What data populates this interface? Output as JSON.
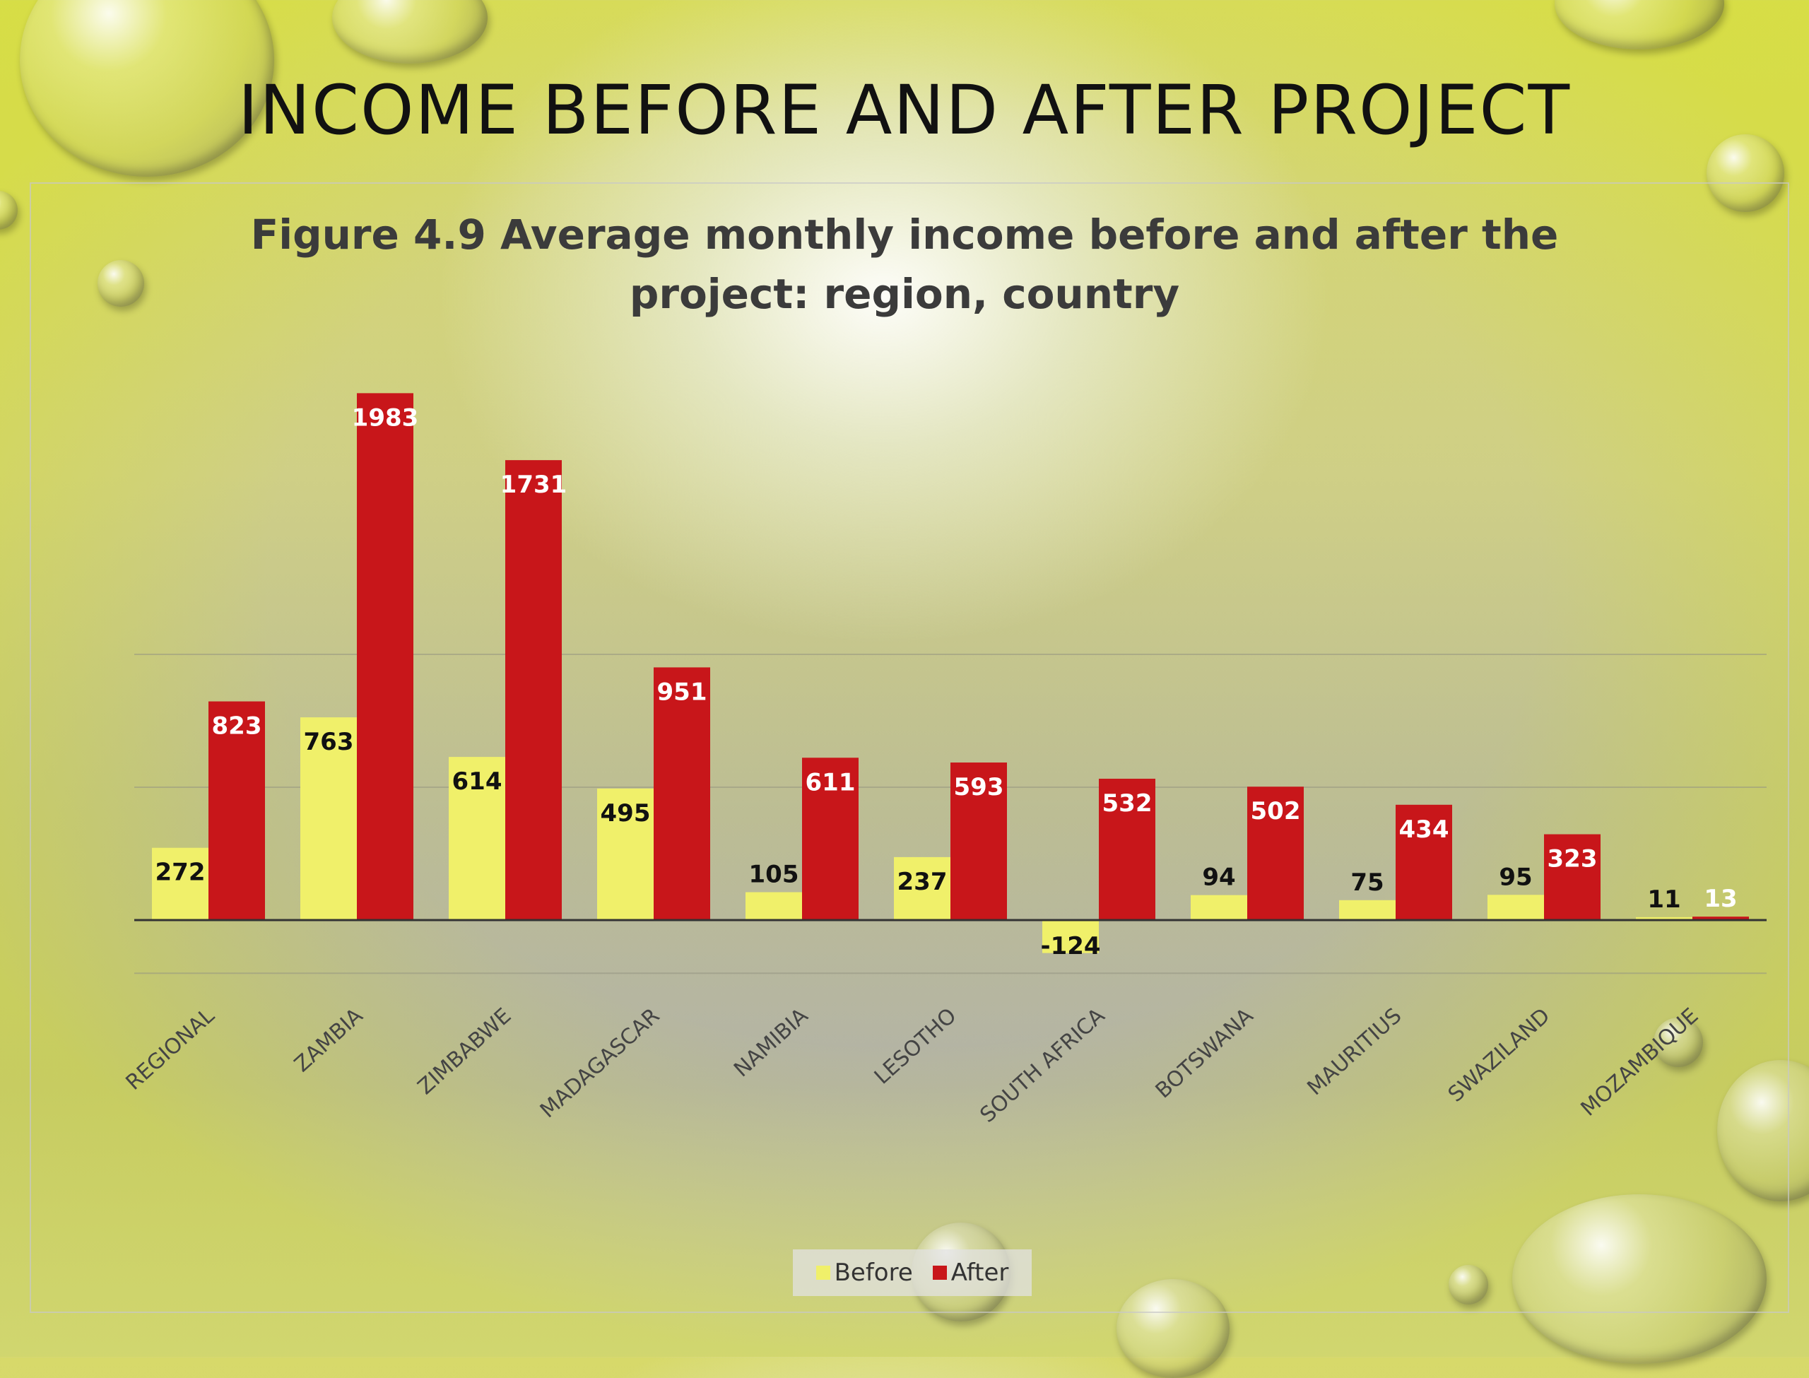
{
  "slide": {
    "title": "INCOME BEFORE AND AFTER PROJECT"
  },
  "chart_data": {
    "type": "bar",
    "title": "Figure 4.9 Average monthly income before and after the project: region, country",
    "title_line1": "Figure 4.9 Average monthly income before and after the",
    "title_line2": "project: region, country",
    "categories": [
      "REGIONAL",
      "ZAMBIA",
      "ZIMBABWE",
      "MADAGASCAR",
      "NAMIBIA",
      "LESOTHO",
      "SOUTH AFRICA",
      "BOTSWANA",
      "MAURITIUS",
      "SWAZILAND",
      "MOZAMBIQUE"
    ],
    "series": [
      {
        "name": "Before",
        "color": "#f0f06a",
        "values": [
          272,
          763,
          614,
          495,
          105,
          237,
          -124,
          94,
          75,
          95,
          11
        ]
      },
      {
        "name": "After",
        "color": "#c8161a",
        "values": [
          823,
          1983,
          1731,
          951,
          611,
          593,
          532,
          502,
          434,
          323,
          13
        ]
      }
    ],
    "ylim": [
      -500,
      2000
    ],
    "gridlines": [
      -200,
      500,
      1000
    ],
    "grid": true,
    "xlabel": "",
    "ylabel": "",
    "legend_position": "bottom",
    "data_labels": true
  }
}
